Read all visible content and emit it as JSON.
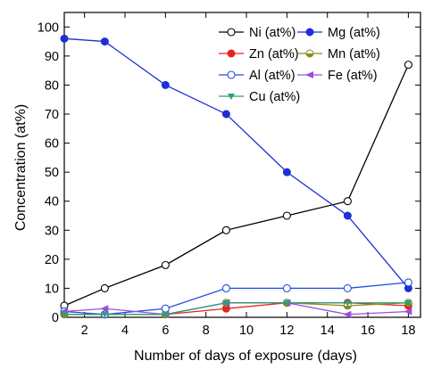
{
  "chart_data": {
    "type": "line",
    "title": "",
    "xlabel": "Number of days of exposure (days)",
    "ylabel": "Concentration (at%)",
    "xlim": [
      1,
      18.6
    ],
    "ylim": [
      0,
      105
    ],
    "x_ticks": [
      2,
      4,
      6,
      8,
      10,
      12,
      14,
      16,
      18
    ],
    "y_ticks": [
      0,
      10,
      20,
      30,
      40,
      50,
      60,
      70,
      80,
      90,
      100
    ],
    "grid": false,
    "legend_placement": "top-right",
    "x": [
      1,
      3,
      6,
      9,
      12,
      15,
      18
    ],
    "series": [
      {
        "name": "Ni (at%)",
        "color": "#000000",
        "marker": "circle-open",
        "values": [
          4,
          10,
          18,
          30,
          35,
          40,
          87
        ]
      },
      {
        "name": "Mg (at%)",
        "color": "#1f2fd6",
        "marker": "circle-filled",
        "values": [
          96,
          95,
          80,
          70,
          50,
          35,
          10
        ]
      },
      {
        "name": "Zn (at%)",
        "color": "#e8231f",
        "marker": "circle-filled",
        "values": [
          1,
          1,
          1,
          3,
          5,
          5,
          4
        ]
      },
      {
        "name": "Mn (at%)",
        "color": "#8a8a1a",
        "marker": "circle-half",
        "values": [
          1,
          1,
          1,
          5,
          5,
          4,
          5
        ]
      },
      {
        "name": "Al (at%)",
        "color": "#1f4fe0",
        "marker": "circle-open",
        "values": [
          2,
          1,
          3,
          10,
          10,
          10,
          12
        ]
      },
      {
        "name": "Fe (at%)",
        "color": "#9a4fe0",
        "marker": "triangle-left",
        "values": [
          2,
          3,
          1,
          5,
          5,
          1,
          2
        ]
      },
      {
        "name": "Cu (at%)",
        "color": "#2aa07a",
        "marker": "triangle-down",
        "values": [
          1,
          1,
          1,
          5,
          5,
          5,
          5
        ]
      }
    ]
  }
}
